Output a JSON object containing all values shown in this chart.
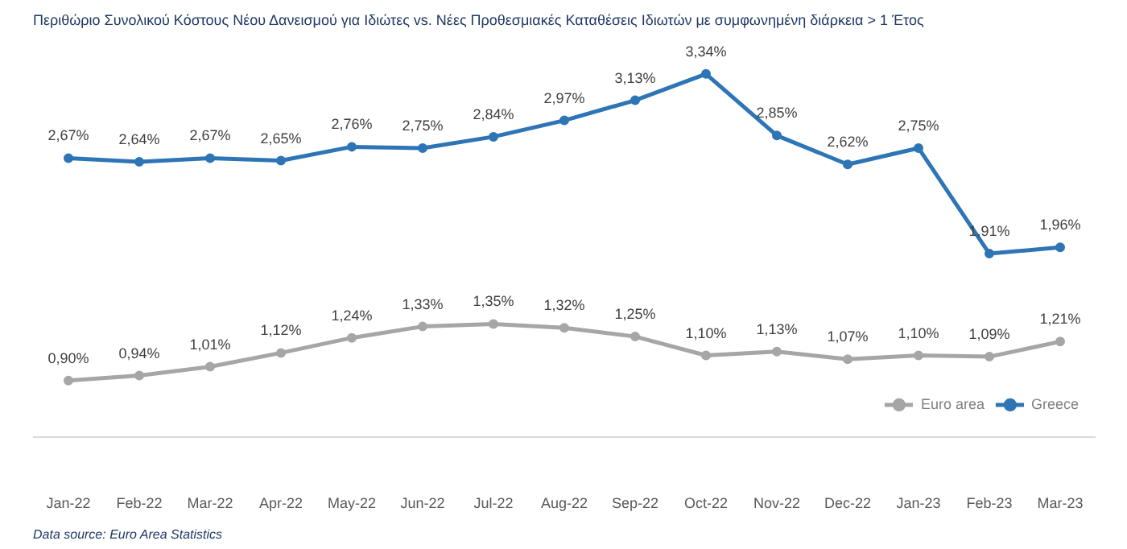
{
  "chart_data": {
    "type": "line",
    "title": "Περιθώριο Συνολικού Κόστους Νέου Δανεισμού για Ιδιώτες vs. Νέες Προθεσμιακές Καταθέσεις Ιδιωτών με συμφωνημένη διάρκεια > 1 Έτος",
    "categories": [
      "Jan-22",
      "Feb-22",
      "Mar-22",
      "Apr-22",
      "May-22",
      "Jun-22",
      "Jul-22",
      "Aug-22",
      "Sep-22",
      "Oct-22",
      "Nov-22",
      "Dec-22",
      "Jan-23",
      "Feb-23",
      "Mar-23"
    ],
    "series": [
      {
        "name": "Euro area",
        "color": "#a6a6a6",
        "values": [
          0.9,
          0.94,
          1.01,
          1.12,
          1.24,
          1.33,
          1.35,
          1.32,
          1.25,
          1.1,
          1.13,
          1.07,
          1.1,
          1.09,
          1.21
        ],
        "value_labels": [
          "0,90%",
          "0,94%",
          "1,01%",
          "1,12%",
          "1,24%",
          "1,33%",
          "1,35%",
          "1,32%",
          "1,25%",
          "1,10%",
          "1,13%",
          "1,07%",
          "1,10%",
          "1,09%",
          "1,21%"
        ]
      },
      {
        "name": "Greece",
        "color": "#2e75b6",
        "values": [
          2.67,
          2.64,
          2.67,
          2.65,
          2.76,
          2.75,
          2.84,
          2.97,
          3.13,
          3.34,
          2.85,
          2.62,
          2.75,
          1.91,
          1.96
        ],
        "value_labels": [
          "2,67%",
          "2,64%",
          "2,67%",
          "2,65%",
          "2,76%",
          "2,75%",
          "2,84%",
          "2,97%",
          "3,13%",
          "3,34%",
          "2,85%",
          "2,62%",
          "2,75%",
          "1,91%",
          "1,96%"
        ]
      }
    ],
    "tick_labels": "x",
    "grid": false,
    "legend": "bottom right",
    "marker": "circle",
    "line_style": "solid",
    "annotations": [
      "Data source: Euro Area Statistics"
    ]
  }
}
